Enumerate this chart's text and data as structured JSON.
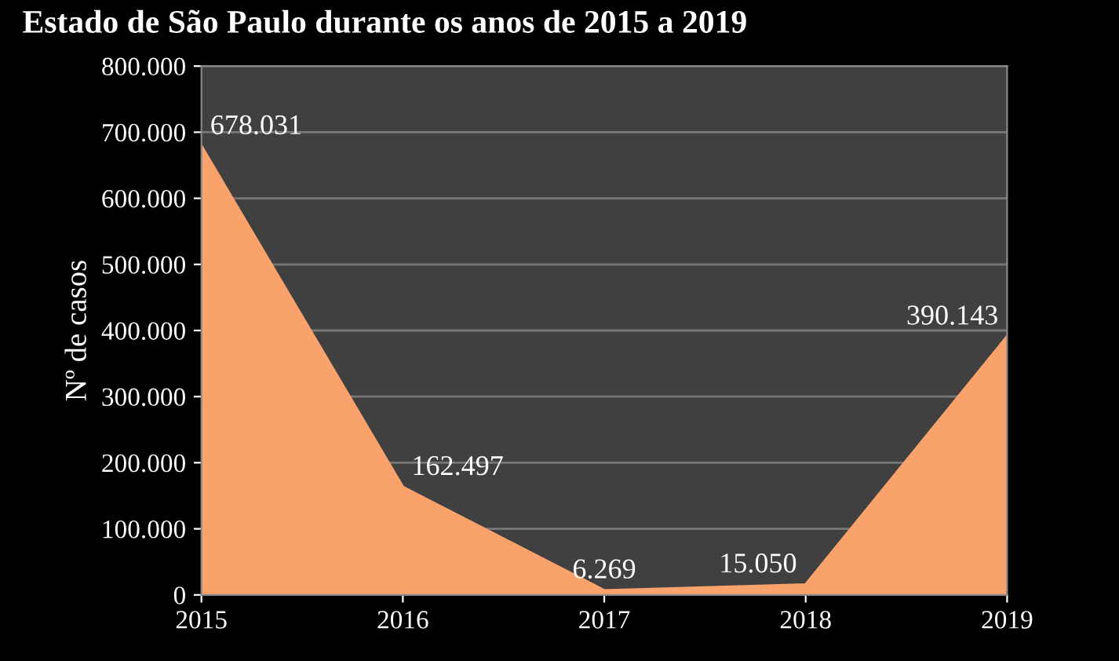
{
  "chart_data": {
    "type": "area",
    "title": "Estado de São Paulo durante os anos de 2015 a 2019",
    "ylabel": "Nº de casos",
    "categories": [
      "2015",
      "2016",
      "2017",
      "2018",
      "2019"
    ],
    "series": [
      {
        "color": "#f9a26c",
        "values": [
          678031,
          162497,
          6269,
          15050,
          390143
        ],
        "value_labels": [
          "678.031",
          "162.497",
          "6.269",
          "15.050",
          "390.143"
        ]
      }
    ],
    "ylim": [
      0,
      800000
    ],
    "yticks": [
      {
        "value": 0,
        "label": "0"
      },
      {
        "value": 100000,
        "label": "100.000"
      },
      {
        "value": 200000,
        "label": "200.000"
      },
      {
        "value": 300000,
        "label": "300.000"
      },
      {
        "value": 400000,
        "label": "400.000"
      },
      {
        "value": 500000,
        "label": "500.000"
      },
      {
        "value": 600000,
        "label": "600.000"
      },
      {
        "value": 700000,
        "label": "700.000"
      },
      {
        "value": 800000,
        "label": "800.000"
      }
    ],
    "grid": "y"
  }
}
